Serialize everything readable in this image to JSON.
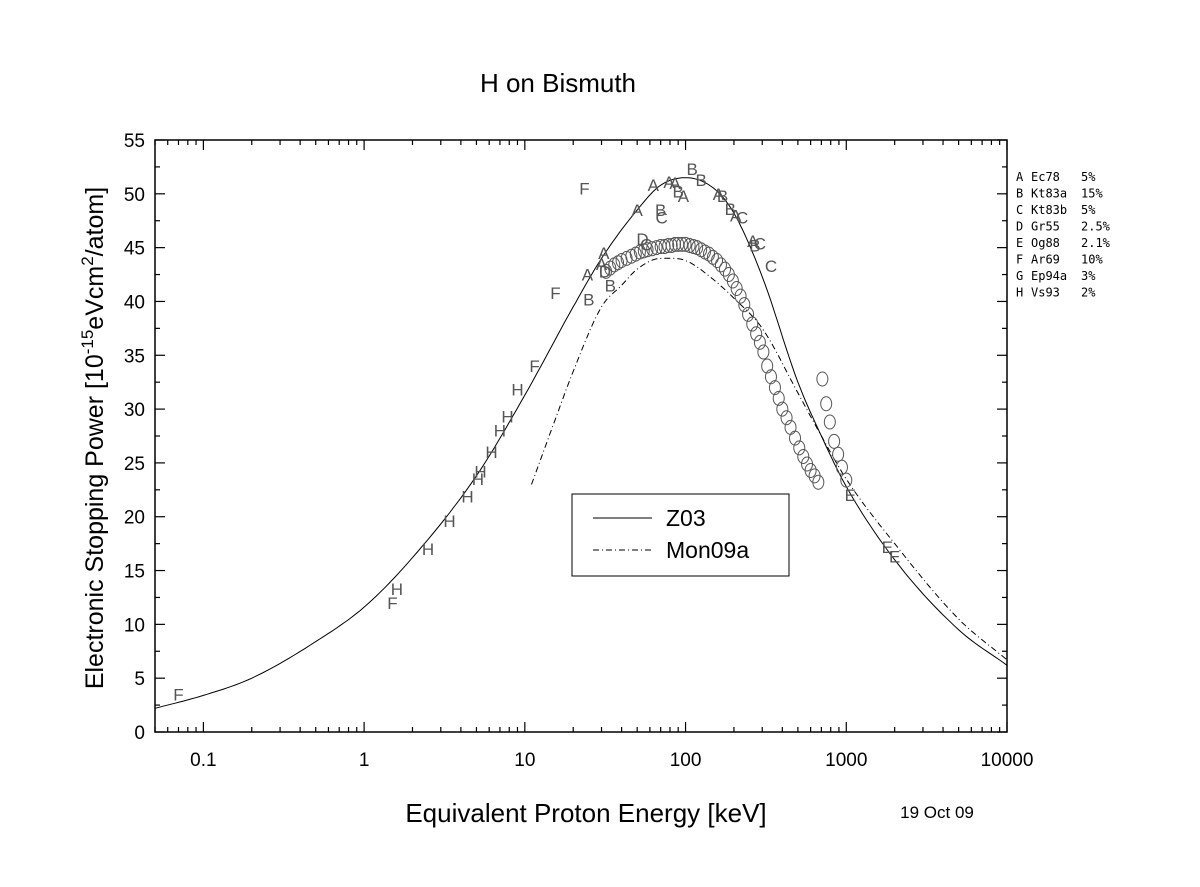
{
  "chart_data": {
    "type": "scatter",
    "title": "H on Bismuth",
    "xlabel": "Equivalent Proton Energy [keV]",
    "ylabel": {
      "pre": "Electronic Stopping Power [10",
      "exp1": "-15",
      "mid": "eVcm",
      "exp2": "2",
      "post": "/atom]"
    },
    "date": "19 Oct 09",
    "xscale": "log",
    "xlim": [
      0.05,
      10000
    ],
    "ylim": [
      0,
      55
    ],
    "xticks": [
      0.1,
      1,
      10,
      100,
      1000,
      10000
    ],
    "xtick_labels": [
      "0.1",
      "1",
      "10",
      "100",
      "1000",
      "10000"
    ],
    "yticks": [
      0,
      5,
      10,
      15,
      20,
      25,
      30,
      35,
      40,
      45,
      50,
      55
    ],
    "ytick_labels": [
      "0",
      "5",
      "10",
      "15",
      "20",
      "25",
      "30",
      "35",
      "40",
      "45",
      "50",
      "55"
    ],
    "grid": false,
    "legend": {
      "placement": "center",
      "entries": [
        "Z03",
        "Mon09a"
      ]
    },
    "lines": [
      {
        "name": "Z03",
        "style": "solid",
        "x": [
          0.05,
          0.1,
          0.2,
          0.5,
          1,
          2,
          5,
          10,
          20,
          30,
          50,
          70,
          100,
          150,
          200,
          300,
          500,
          700,
          1000,
          2000,
          5000,
          10000
        ],
        "y": [
          2.2,
          3.4,
          5.0,
          8.4,
          11.6,
          16.2,
          23.8,
          31.3,
          39.5,
          44.0,
          48.5,
          50.8,
          51.5,
          50.5,
          48.2,
          42.3,
          32.5,
          27.5,
          22.8,
          16.0,
          9.5,
          6.2
        ]
      },
      {
        "name": "Mon09a",
        "style": "dashdot",
        "x": [
          11,
          15,
          20,
          30,
          40,
          50,
          70,
          100,
          150,
          200,
          300,
          500,
          700,
          1000,
          2000,
          5000,
          10000
        ],
        "y": [
          23.0,
          28.5,
          33.5,
          39.5,
          41.5,
          43.0,
          44.0,
          43.8,
          42.0,
          40.3,
          37.5,
          31.5,
          27.5,
          23.5,
          17.5,
          10.5,
          6.7
        ]
      }
    ],
    "series_key": [
      {
        "letter": "A",
        "ref": "Ec78",
        "err": "5%"
      },
      {
        "letter": "B",
        "ref": "Kt83a",
        "err": "15%"
      },
      {
        "letter": "C",
        "ref": "Kt83b",
        "err": "5%"
      },
      {
        "letter": "D",
        "ref": "Gr55",
        "err": "2.5%"
      },
      {
        "letter": "E",
        "ref": "Og88",
        "err": "2.1%"
      },
      {
        "letter": "F",
        "ref": "Ar69",
        "err": "10%"
      },
      {
        "letter": "G",
        "ref": "Ep94a",
        "err": "3%"
      },
      {
        "letter": "H",
        "ref": "Vs93",
        "err": "2%"
      }
    ],
    "points": [
      {
        "s": "F",
        "x": 0.07,
        "y": 3.5
      },
      {
        "s": "F",
        "x": 1.5,
        "y": 12.0
      },
      {
        "s": "H",
        "x": 1.6,
        "y": 13.3
      },
      {
        "s": "H",
        "x": 2.5,
        "y": 17.0
      },
      {
        "s": "H",
        "x": 3.4,
        "y": 19.6
      },
      {
        "s": "H",
        "x": 4.4,
        "y": 21.9
      },
      {
        "s": "H",
        "x": 5.1,
        "y": 23.5
      },
      {
        "s": "H",
        "x": 5.3,
        "y": 24.2
      },
      {
        "s": "H",
        "x": 6.2,
        "y": 26.0
      },
      {
        "s": "H",
        "x": 7.0,
        "y": 28.0
      },
      {
        "s": "H",
        "x": 7.8,
        "y": 29.3
      },
      {
        "s": "H",
        "x": 9.0,
        "y": 31.8
      },
      {
        "s": "F",
        "x": 11.5,
        "y": 34.0
      },
      {
        "s": "F",
        "x": 15.5,
        "y": 40.8
      },
      {
        "s": "F",
        "x": 23.5,
        "y": 50.5
      },
      {
        "s": "A",
        "x": 24.5,
        "y": 42.5
      },
      {
        "s": "B",
        "x": 25.0,
        "y": 40.2
      },
      {
        "s": "A",
        "x": 30.0,
        "y": 43.5
      },
      {
        "s": "A",
        "x": 31.0,
        "y": 44.5
      },
      {
        "s": "D",
        "x": 31.5,
        "y": 42.8
      },
      {
        "s": "B",
        "x": 34.0,
        "y": 41.5
      },
      {
        "s": "A",
        "x": 50.0,
        "y": 48.5
      },
      {
        "s": "D",
        "x": 54.0,
        "y": 45.8
      },
      {
        "s": "C",
        "x": 57.0,
        "y": 45.3
      },
      {
        "s": "A",
        "x": 63.0,
        "y": 50.8
      },
      {
        "s": "B",
        "x": 70.0,
        "y": 48.5
      },
      {
        "s": "C",
        "x": 71.0,
        "y": 47.8
      },
      {
        "s": "A",
        "x": 79.0,
        "y": 51.1
      },
      {
        "s": "A",
        "x": 86.0,
        "y": 51.0
      },
      {
        "s": "B",
        "x": 90.0,
        "y": 50.2
      },
      {
        "s": "A",
        "x": 97.0,
        "y": 49.8
      },
      {
        "s": "B",
        "x": 110.0,
        "y": 52.3
      },
      {
        "s": "B",
        "x": 125.0,
        "y": 51.3
      },
      {
        "s": "A",
        "x": 160.0,
        "y": 50.0
      },
      {
        "s": "B",
        "x": 170.0,
        "y": 49.8
      },
      {
        "s": "B",
        "x": 190.0,
        "y": 48.6
      },
      {
        "s": "A",
        "x": 205.0,
        "y": 48.0
      },
      {
        "s": "C",
        "x": 225.0,
        "y": 47.8
      },
      {
        "s": "A",
        "x": 262.0,
        "y": 45.6
      },
      {
        "s": "B",
        "x": 270.0,
        "y": 45.2
      },
      {
        "s": "C",
        "x": 290.0,
        "y": 45.4
      },
      {
        "s": "C",
        "x": 340.0,
        "y": 43.3
      },
      {
        "s": "E",
        "x": 1060.0,
        "y": 22.0
      },
      {
        "s": "E",
        "x": 1800.0,
        "y": 17.2
      },
      {
        "s": "E",
        "x": 2000.0,
        "y": 16.3
      }
    ],
    "circles": {
      "x": [
        32,
        34,
        36,
        38,
        40,
        43,
        46,
        49,
        52,
        55,
        58,
        62,
        66,
        70,
        74,
        78,
        82,
        86,
        90,
        95,
        100,
        106,
        112,
        118,
        125,
        132,
        140,
        148,
        157,
        166,
        176,
        186,
        197,
        208,
        220,
        232,
        245,
        260,
        275,
        290,
        305,
        322,
        340,
        360,
        380,
        400,
        425,
        450,
        480,
        510,
        540,
        570,
        600,
        635,
        670,
        710,
        750,
        790,
        840,
        890,
        940,
        1000
      ],
      "y": [
        42.8,
        43.1,
        43.4,
        43.6,
        43.8,
        44.0,
        44.2,
        44.4,
        44.6,
        44.7,
        44.8,
        44.9,
        45.0,
        45.1,
        45.1,
        45.2,
        45.2,
        45.3,
        45.3,
        45.3,
        45.3,
        45.2,
        45.1,
        45.0,
        44.8,
        44.6,
        44.4,
        44.1,
        43.8,
        43.4,
        43.0,
        42.5,
        41.9,
        41.2,
        40.5,
        39.7,
        38.8,
        37.9,
        37.0,
        36.2,
        35.3,
        34.0,
        33.0,
        32.0,
        31.0,
        30.0,
        29.2,
        28.3,
        27.3,
        26.4,
        25.6,
        24.9,
        24.3,
        23.8,
        23.2,
        32.8,
        30.5,
        28.8,
        27.0,
        25.8,
        24.6,
        23.4
      ]
    }
  }
}
